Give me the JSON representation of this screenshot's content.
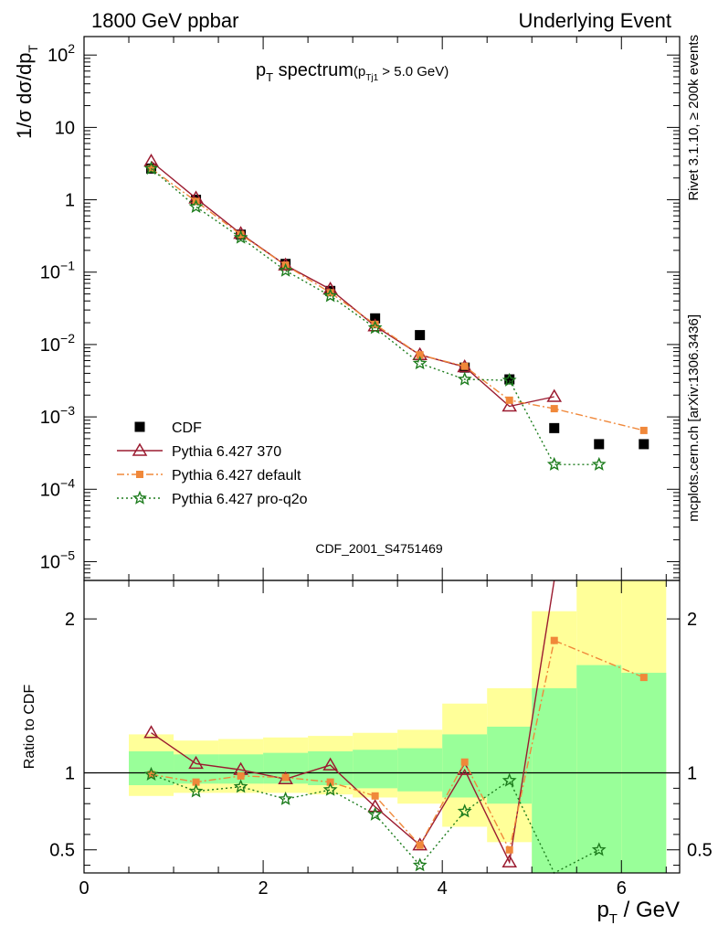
{
  "header": {
    "left": "1800 GeV ppbar",
    "right": "Underlying Event"
  },
  "side_labels": {
    "rivet": "Rivet 3.1.10, ≥ 200k events",
    "mcplots": "mcplots.cern.ch [arXiv:1306.3436]"
  },
  "chart_data": [
    {
      "panel": "main",
      "type": "scatter",
      "title_main": "p",
      "title_sub": "T",
      "title_rest": " spectrum",
      "title_cut": "(p",
      "title_cut_sub": "Tj1",
      "title_cut_rest": " > 5.0 GeV)",
      "analysis_id": "CDF_2001_S4751469",
      "ylabel": "1/σ dσ/dp",
      "ylabel_sub": "T",
      "yscale": "log",
      "ylim": [
        5.5e-06,
        180
      ],
      "xlim": [
        0,
        6.65
      ],
      "ytick_labels": [
        {
          "v": 1e-05,
          "base": "10",
          "exp": "−5"
        },
        {
          "v": 0.0001,
          "base": "10",
          "exp": "−4"
        },
        {
          "v": 0.001,
          "base": "10",
          "exp": "−3"
        },
        {
          "v": 0.01,
          "base": "10",
          "exp": "−2"
        },
        {
          "v": 0.1,
          "base": "10",
          "exp": "−1"
        },
        {
          "v": 1,
          "base": "1",
          "exp": ""
        },
        {
          "v": 10,
          "base": "10",
          "exp": ""
        },
        {
          "v": 100,
          "base": "10",
          "exp": "2"
        }
      ],
      "legend_position": "lower-left",
      "series": [
        {
          "name": "CDF",
          "style": "data",
          "color": "#000000",
          "x": [
            0.75,
            1.25,
            1.75,
            2.25,
            2.75,
            3.25,
            3.75,
            4.25,
            4.75,
            5.25,
            5.75,
            6.25
          ],
          "y": [
            2.7,
            1.0,
            0.33,
            0.13,
            0.055,
            0.023,
            0.0135,
            0.0048,
            0.0033,
            0.0007,
            0.00042,
            0.00042
          ]
        },
        {
          "name": "Pythia 6.427 370",
          "style": "triangle-solid",
          "color": "#9b1b30",
          "x": [
            0.75,
            1.25,
            1.75,
            2.25,
            2.75,
            3.25,
            3.75,
            4.25,
            4.75,
            5.25
          ],
          "y": [
            3.4,
            1.05,
            0.34,
            0.125,
            0.058,
            0.018,
            0.0072,
            0.0049,
            0.0014,
            0.0019
          ]
        },
        {
          "name": "Pythia 6.427 default",
          "style": "square-dashdot",
          "color": "#f0883a",
          "x": [
            0.75,
            1.25,
            1.75,
            2.25,
            2.75,
            3.25,
            3.75,
            4.25,
            4.75,
            5.25,
            6.25
          ],
          "y": [
            2.7,
            0.95,
            0.33,
            0.125,
            0.052,
            0.019,
            0.0072,
            0.005,
            0.0017,
            0.0013,
            0.00065
          ]
        },
        {
          "name": "Pythia 6.427 pro-q2o",
          "style": "star-dotted",
          "color": "#1e7d1e",
          "x": [
            0.75,
            1.25,
            1.75,
            2.25,
            2.75,
            3.25,
            3.75,
            4.25,
            4.75,
            5.25,
            5.75
          ],
          "y": [
            2.7,
            0.8,
            0.3,
            0.105,
            0.047,
            0.017,
            0.0055,
            0.0033,
            0.0032,
            0.00022,
            0.00022
          ]
        }
      ]
    },
    {
      "panel": "ratio",
      "type": "line",
      "ylabel": "Ratio to CDF",
      "xlabel": "p",
      "xlabel_sub": "T",
      "xlabel_rest": " / GeV",
      "ylim": [
        0.35,
        2.25
      ],
      "xlim": [
        0,
        6.65
      ],
      "yticks": [
        0.5,
        1,
        2
      ],
      "ytick_labels": [
        "0.5",
        "1",
        "2"
      ],
      "xticks": [
        0,
        2,
        4,
        6
      ],
      "xtick_labels": [
        "0",
        "2",
        "4",
        "6"
      ],
      "bands": {
        "bins": [
          [
            0.5,
            1.0
          ],
          [
            1.0,
            1.5
          ],
          [
            1.5,
            2.0
          ],
          [
            2.0,
            2.5
          ],
          [
            2.5,
            3.0
          ],
          [
            3.0,
            3.5
          ],
          [
            3.5,
            4.0
          ],
          [
            4.0,
            4.5
          ],
          [
            4.5,
            5.0
          ],
          [
            5.0,
            5.5
          ],
          [
            5.5,
            6.0
          ],
          [
            6.0,
            6.5
          ]
        ],
        "yellow_lo": [
          0.85,
          0.87,
          0.87,
          0.87,
          0.86,
          0.84,
          0.8,
          0.65,
          0.55,
          0.1,
          0.1,
          0.1
        ],
        "yellow_hi": [
          1.25,
          1.21,
          1.22,
          1.23,
          1.24,
          1.26,
          1.28,
          1.45,
          1.55,
          2.05,
          2.3,
          2.25
        ],
        "green_lo": [
          0.92,
          0.93,
          0.93,
          0.93,
          0.92,
          0.9,
          0.88,
          0.84,
          0.8,
          0.3,
          0.35,
          0.35
        ],
        "green_hi": [
          1.14,
          1.12,
          1.12,
          1.13,
          1.14,
          1.15,
          1.16,
          1.25,
          1.3,
          1.55,
          1.7,
          1.65
        ]
      },
      "series": [
        {
          "name": "Pythia 6.427 370",
          "style": "triangle-solid",
          "color": "#9b1b30",
          "x": [
            0.75,
            1.25,
            1.75,
            2.25,
            2.75,
            3.25,
            3.75,
            4.25,
            4.75,
            5.25
          ],
          "y": [
            1.26,
            1.06,
            1.02,
            0.96,
            1.05,
            0.78,
            0.53,
            1.02,
            0.42,
            2.7
          ]
        },
        {
          "name": "Pythia 6.427 default",
          "style": "square-dashdot",
          "color": "#f0883a",
          "x": [
            0.75,
            1.25,
            1.75,
            2.25,
            2.75,
            3.25,
            3.75,
            4.25,
            4.75,
            5.25,
            6.25
          ],
          "y": [
            0.99,
            0.94,
            0.98,
            0.97,
            0.94,
            0.85,
            0.53,
            1.07,
            0.5,
            1.86,
            1.62
          ]
        },
        {
          "name": "Pythia 6.427 pro-q2o",
          "style": "star-dotted",
          "color": "#1e7d1e",
          "x": [
            0.75,
            1.25,
            1.75,
            2.25,
            2.75,
            3.25,
            3.75,
            4.25,
            4.75,
            5.25,
            5.75
          ],
          "y": [
            0.99,
            0.88,
            0.91,
            0.83,
            0.89,
            0.73,
            0.4,
            0.75,
            0.95,
            0.2,
            0.5
          ]
        }
      ]
    }
  ]
}
